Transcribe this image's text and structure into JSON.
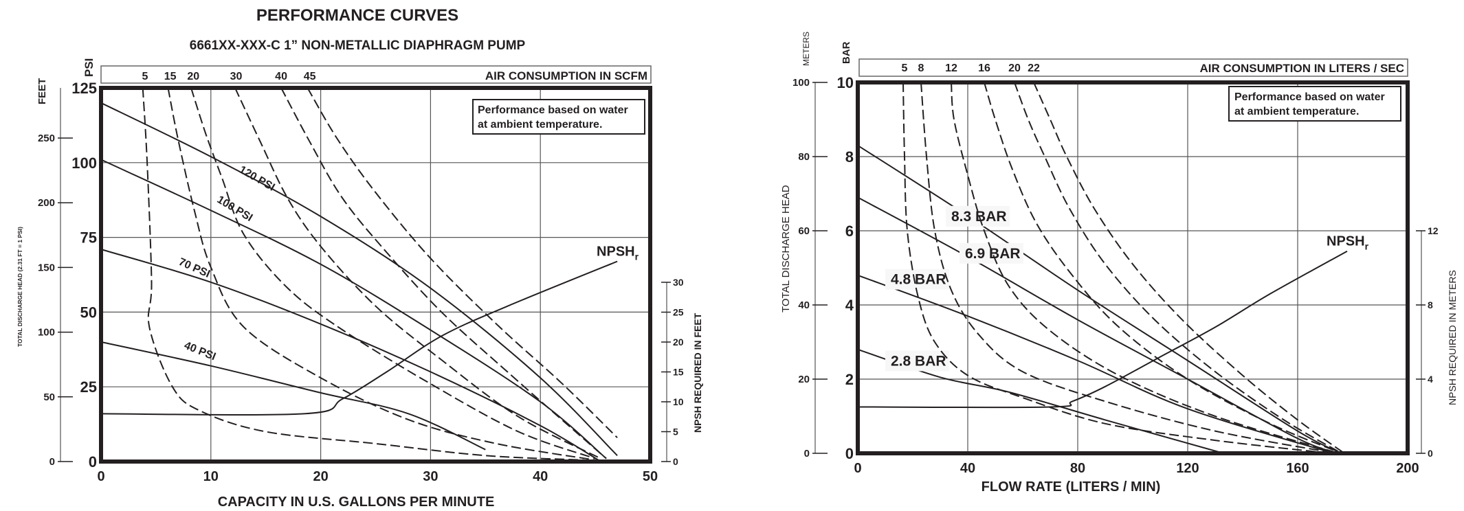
{
  "header": {
    "title": "PERFORMANCE CURVES",
    "subtitle": "6661XX-XXX-C   1” NON-METALLIC DIAPHRAGM PUMP"
  },
  "note": {
    "line1": "Performance based on water",
    "line2": "at ambient temperature."
  },
  "chart_data": [
    {
      "type": "line",
      "title": "6661XX-XXX-C 1” NON-METALLIC DIAPHRAGM PUMP (US units)",
      "xlabel": "CAPACITY IN U.S. GALLONS PER MINUTE",
      "ylabel": "PSI",
      "ylabel_feet": "FEET",
      "ylabel_head": "TOTAL DISCHARGE HEAD (2.31 FT = 1 PSI)",
      "y2label": "NPSH REQUIRED IN FEET",
      "top_axis_label": "AIR CONSUMPTION IN SCFM",
      "xlim": [
        0,
        50
      ],
      "ylim": [
        0,
        125
      ],
      "grid": true,
      "x_ticks": [
        0,
        10,
        20,
        30,
        40,
        50
      ],
      "y_ticks_psi": [
        0,
        25,
        50,
        75,
        100,
        125
      ],
      "y_ticks_feet": [
        0,
        50,
        100,
        150,
        200,
        250
      ],
      "y2_ticks_npsh_ft": [
        0,
        5,
        10,
        15,
        20,
        25,
        30
      ],
      "air_labels": [
        {
          "label": "5",
          "x": 4
        },
        {
          "label": "15",
          "x": 6.3
        },
        {
          "label": "20",
          "x": 8.4
        },
        {
          "label": "30",
          "x": 12.3
        },
        {
          "label": "40",
          "x": 16.4
        },
        {
          "label": "45",
          "x": 19
        }
      ],
      "series": [
        {
          "name": "120 PSI",
          "style": "solid",
          "label_pos": [
            12.5,
            97
          ],
          "label_angle": 30,
          "points": [
            [
              0,
              120
            ],
            [
              10,
              102
            ],
            [
              20,
              82
            ],
            [
              30,
              58
            ],
            [
              40,
              28
            ],
            [
              47,
              2
            ]
          ]
        },
        {
          "name": "100 PSI",
          "style": "solid",
          "label_pos": [
            10.5,
            87
          ],
          "label_angle": 31,
          "points": [
            [
              0,
              101
            ],
            [
              10,
              84
            ],
            [
              20,
              66
            ],
            [
              30,
              44
            ],
            [
              40,
              20
            ],
            [
              46,
              1
            ]
          ]
        },
        {
          "name": "70 PSI",
          "style": "solid",
          "label_pos": [
            7,
            66
          ],
          "label_angle": 24,
          "points": [
            [
              0,
              71
            ],
            [
              10,
              60
            ],
            [
              20,
              46
            ],
            [
              30,
              30
            ],
            [
              40,
              12
            ],
            [
              45.5,
              0
            ]
          ]
        },
        {
          "name": "40 PSI",
          "style": "solid",
          "label_pos": [
            7.5,
            38
          ],
          "label_angle": 22,
          "points": [
            [
              0,
              40
            ],
            [
              10,
              32
            ],
            [
              20,
              23
            ],
            [
              28,
              16
            ],
            [
              35,
              4
            ]
          ]
        },
        {
          "name": "5 SCFM",
          "style": "dashed",
          "points": [
            [
              3.8,
              125
            ],
            [
              4.2,
              100
            ],
            [
              4.6,
              60
            ],
            [
              4.4,
              45
            ],
            [
              6.5,
              25
            ],
            [
              9,
              17
            ],
            [
              15,
              10
            ],
            [
              25,
              6
            ],
            [
              35,
              2
            ],
            [
              44,
              0.5
            ]
          ]
        },
        {
          "name": "15 SCFM",
          "style": "dashed",
          "points": [
            [
              6.1,
              125
            ],
            [
              7,
              108
            ],
            [
              8.5,
              84
            ],
            [
              10,
              65
            ],
            [
              13,
              45
            ],
            [
              20,
              28
            ],
            [
              28,
              14
            ],
            [
              36,
              6
            ],
            [
              45,
              0.5
            ]
          ]
        },
        {
          "name": "20 SCFM",
          "style": "dashed",
          "points": [
            [
              8.2,
              125
            ],
            [
              9.5,
              110
            ],
            [
              11,
              95
            ],
            [
              13,
              76
            ],
            [
              17,
              58
            ],
            [
              22,
              44
            ],
            [
              30,
              26
            ],
            [
              38,
              10
            ],
            [
              45,
              1
            ]
          ]
        },
        {
          "name": "30 SCFM",
          "style": "dashed",
          "points": [
            [
              12.2,
              125
            ],
            [
              14.5,
              107
            ],
            [
              17,
              88
            ],
            [
              20,
              72
            ],
            [
              25,
              52
            ],
            [
              31,
              34
            ],
            [
              38,
              15
            ],
            [
              45.5,
              1
            ]
          ]
        },
        {
          "name": "40 SCFM",
          "style": "dashed",
          "points": [
            [
              16.4,
              125
            ],
            [
              19,
              107
            ],
            [
              22,
              88
            ],
            [
              26,
              70
            ],
            [
              31,
              50
            ],
            [
              37,
              30
            ],
            [
              46,
              1
            ]
          ]
        },
        {
          "name": "45 SCFM",
          "style": "dashed",
          "points": [
            [
              18.8,
              125
            ],
            [
              21.5,
              108
            ],
            [
              25,
              90
            ],
            [
              30,
              68
            ],
            [
              36,
              46
            ],
            [
              42,
              26
            ],
            [
              47,
              8
            ]
          ]
        }
      ],
      "npsh": {
        "name": "NPSHr",
        "style": "solid",
        "label": "NPSH",
        "label_sub": "r",
        "points_ft": [
          [
            0,
            8
          ],
          [
            18.5,
            8
          ],
          [
            22,
            10.5
          ],
          [
            26,
            15
          ],
          [
            31,
            21
          ],
          [
            37,
            26
          ],
          [
            47,
            33.5
          ]
        ]
      }
    },
    {
      "type": "line",
      "title": "6661XX-XXX-C 1” NON-METALLIC DIAPHRAGM PUMP (metric units)",
      "xlabel": "FLOW RATE (LITERS / MIN)",
      "ylabel": "BAR",
      "ylabel_meters": "METERS",
      "ylabel_head": "TOTAL DISCHARGE HEAD",
      "y2label": "NPSH REQUIRED IN METERS",
      "top_axis_label": "AIR CONSUMPTION IN LITERS / SEC",
      "xlim": [
        0,
        200
      ],
      "ylim": [
        0,
        10
      ],
      "grid": true,
      "x_ticks": [
        0,
        40,
        80,
        120,
        160,
        200
      ],
      "y_ticks_bar": [
        0,
        2,
        4,
        6,
        8,
        10
      ],
      "y_ticks_meters": [
        0,
        20,
        40,
        60,
        80,
        100
      ],
      "y2_ticks_npsh_m": [
        0,
        4,
        8,
        12
      ],
      "air_labels": [
        {
          "label": "5",
          "x": 17
        },
        {
          "label": "8",
          "x": 23
        },
        {
          "label": "12",
          "x": 34
        },
        {
          "label": "16",
          "x": 46
        },
        {
          "label": "20",
          "x": 57
        },
        {
          "label": "22",
          "x": 64
        }
      ],
      "series": [
        {
          "name": "8.3 BAR",
          "style": "solid",
          "label_pos": [
            34,
            6.3
          ],
          "points": [
            [
              0,
              8.3
            ],
            [
              40,
              6.4
            ],
            [
              80,
              4.4
            ],
            [
              120,
              2.5
            ],
            [
              160,
              0.6
            ],
            [
              176,
              0
            ]
          ]
        },
        {
          "name": "6.9 BAR",
          "style": "solid",
          "label_pos": [
            39,
            5.3
          ],
          "points": [
            [
              0,
              6.9
            ],
            [
              40,
              5.3
            ],
            [
              80,
              3.6
            ],
            [
              120,
              2.0
            ],
            [
              160,
              0.4
            ],
            [
              175,
              0
            ]
          ]
        },
        {
          "name": "4.8 BAR",
          "style": "solid",
          "label_pos": [
            12,
            4.6
          ],
          "points": [
            [
              0,
              4.8
            ],
            [
              40,
              3.7
            ],
            [
              80,
              2.5
            ],
            [
              120,
              1.2
            ],
            [
              173,
              0
            ]
          ]
        },
        {
          "name": "2.8 BAR",
          "style": "solid",
          "label_pos": [
            12,
            2.4
          ],
          "points": [
            [
              0,
              2.8
            ],
            [
              30,
              2.05
            ],
            [
              55,
              1.65
            ],
            [
              90,
              0.9
            ],
            [
              133,
              0
            ]
          ]
        },
        {
          "name": "5 L/S",
          "style": "dashed",
          "points": [
            [
              16.5,
              10
            ],
            [
              17,
              8
            ],
            [
              18,
              6
            ],
            [
              22,
              4.2
            ],
            [
              28,
              3
            ],
            [
              40,
              2.1
            ],
            [
              60,
              1.5
            ],
            [
              90,
              0.8
            ],
            [
              130,
              0.35
            ],
            [
              172,
              0
            ]
          ]
        },
        {
          "name": "8 L/S",
          "style": "dashed",
          "points": [
            [
              23,
              10
            ],
            [
              25,
              8
            ],
            [
              28,
              6
            ],
            [
              34,
              4.4
            ],
            [
              44,
              3.2
            ],
            [
              60,
              2.2
            ],
            [
              90,
              1.4
            ],
            [
              130,
              0.6
            ],
            [
              174,
              0
            ]
          ]
        },
        {
          "name": "12 L/S",
          "style": "dashed",
          "points": [
            [
              34,
              10
            ],
            [
              35,
              9
            ],
            [
              40,
              7.5
            ],
            [
              46,
              6
            ],
            [
              55,
              4.5
            ],
            [
              70,
              3.3
            ],
            [
              95,
              2.1
            ],
            [
              130,
              1.0
            ],
            [
              175,
              0
            ]
          ]
        },
        {
          "name": "16 L/S",
          "style": "dashed",
          "points": [
            [
              46,
              10
            ],
            [
              50,
              9
            ],
            [
              56,
              7.7
            ],
            [
              65,
              6.2
            ],
            [
              78,
              4.8
            ],
            [
              95,
              3.4
            ],
            [
              120,
              2.0
            ],
            [
              150,
              0.8
            ],
            [
              176,
              0
            ]
          ]
        },
        {
          "name": "20 L/S",
          "style": "dashed",
          "points": [
            [
              57,
              10
            ],
            [
              62,
              9
            ],
            [
              68,
              8
            ],
            [
              77,
              6.6
            ],
            [
              90,
              5.1
            ],
            [
              108,
              3.6
            ],
            [
              130,
              2.2
            ],
            [
              155,
              0.9
            ],
            [
              176,
              0
            ]
          ]
        },
        {
          "name": "22 L/S",
          "style": "dashed",
          "points": [
            [
              64,
              10
            ],
            [
              70,
              9
            ],
            [
              76,
              8
            ],
            [
              86,
              6.6
            ],
            [
              100,
              5.1
            ],
            [
              118,
              3.6
            ],
            [
              140,
              2.1
            ],
            [
              160,
              0.9
            ],
            [
              177,
              0
            ]
          ]
        }
      ],
      "npsh": {
        "name": "NPSHr",
        "style": "solid",
        "label": "NPSH",
        "label_sub": "r",
        "points_m": [
          [
            0,
            2.5
          ],
          [
            70,
            2.5
          ],
          [
            78,
            2.8
          ],
          [
            90,
            3.6
          ],
          [
            110,
            5.2
          ],
          [
            130,
            6.8
          ],
          [
            150,
            8.6
          ],
          [
            178,
            10.9
          ]
        ]
      }
    }
  ]
}
